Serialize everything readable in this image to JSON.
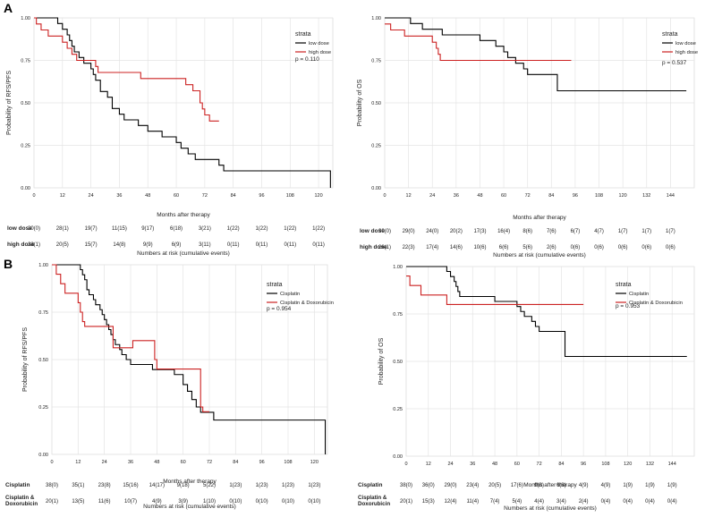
{
  "figure_labels": {
    "a": "A",
    "b": "B"
  },
  "chart_data": [
    {
      "id": "A-left",
      "type": "line",
      "step": true,
      "ylabel": "Probability of RFS/PFS",
      "xlabel": "Months after therapy",
      "risk_title": "Numbers at risk (cumulative events)",
      "xticks": [
        0,
        12,
        24,
        36,
        48,
        60,
        72,
        84,
        96,
        108,
        120
      ],
      "xlim": [
        0,
        126
      ],
      "yticks": [
        "0.00",
        "0.25",
        "0.50",
        "0.75",
        "1.00"
      ],
      "ylim": [
        0,
        1
      ],
      "legend_title": "strata",
      "pvalue": "p = 0.110",
      "series": [
        {
          "name": "low dose",
          "color": "#000000",
          "points": [
            [
              0,
              1
            ],
            [
              10,
              1
            ],
            [
              10,
              0.967
            ],
            [
              12,
              0.967
            ],
            [
              12,
              0.933
            ],
            [
              14,
              0.9
            ],
            [
              15,
              0.867
            ],
            [
              16,
              0.833
            ],
            [
              17,
              0.8
            ],
            [
              19,
              0.767
            ],
            [
              21,
              0.733
            ],
            [
              24,
              0.7
            ],
            [
              25,
              0.667
            ],
            [
              26,
              0.633
            ],
            [
              28,
              0.567
            ],
            [
              31,
              0.533
            ],
            [
              33,
              0.467
            ],
            [
              36,
              0.433
            ],
            [
              38,
              0.4
            ],
            [
              44,
              0.367
            ],
            [
              48,
              0.333
            ],
            [
              54,
              0.3
            ],
            [
              60,
              0.267
            ],
            [
              62,
              0.233
            ],
            [
              65,
              0.2
            ],
            [
              68,
              0.167
            ],
            [
              78,
              0.133
            ],
            [
              80,
              0.1
            ],
            [
              125,
              0.1
            ],
            [
              125,
              0
            ]
          ]
        },
        {
          "name": "high dose",
          "color": "#cc2222",
          "points": [
            [
              0,
              1
            ],
            [
              1,
              0.964
            ],
            [
              3,
              0.929
            ],
            [
              6,
              0.893
            ],
            [
              12,
              0.857
            ],
            [
              14,
              0.821
            ],
            [
              16,
              0.786
            ],
            [
              18,
              0.75
            ],
            [
              21,
              0.75
            ],
            [
              26,
              0.714
            ],
            [
              27,
              0.679
            ],
            [
              44,
              0.679
            ],
            [
              45,
              0.643
            ],
            [
              55,
              0.643
            ],
            [
              64,
              0.607
            ],
            [
              67,
              0.571
            ],
            [
              70,
              0.5
            ],
            [
              71,
              0.464
            ],
            [
              72,
              0.429
            ],
            [
              74,
              0.393
            ],
            [
              78,
              0.393
            ]
          ]
        }
      ],
      "risk_rows": [
        {
          "label": "low dose",
          "values": [
            "30(0)",
            "28(1)",
            "19(7)",
            "11(15)",
            "9(17)",
            "6(18)",
            "3(21)",
            "1(22)",
            "1(22)",
            "1(22)",
            "1(22)"
          ]
        },
        {
          "label": "high dose",
          "values": [
            "28(1)",
            "20(5)",
            "15(7)",
            "14(8)",
            "9(9)",
            "6(9)",
            "3(11)",
            "0(11)",
            "0(11)",
            "0(11)",
            "0(11)"
          ]
        }
      ]
    },
    {
      "id": "A-right",
      "type": "line",
      "step": true,
      "ylabel": "Probability of OS",
      "xlabel": "Months after therapy",
      "risk_title": "Numbers at risk (cumulative events)",
      "xticks": [
        0,
        12,
        24,
        36,
        48,
        60,
        72,
        84,
        96,
        108,
        120,
        132,
        144
      ],
      "xlim": [
        0,
        156
      ],
      "yticks": [
        "0.00",
        "0.25",
        "0.50",
        "0.75",
        "1.00"
      ],
      "ylim": [
        0,
        1
      ],
      "legend_title": "strata",
      "pvalue": "p = 0.537",
      "series": [
        {
          "name": "low dose",
          "color": "#000000",
          "points": [
            [
              0,
              1
            ],
            [
              12,
              1
            ],
            [
              13,
              0.967
            ],
            [
              18,
              0.967
            ],
            [
              19,
              0.933
            ],
            [
              28,
              0.933
            ],
            [
              29,
              0.9
            ],
            [
              46,
              0.9
            ],
            [
              48,
              0.867
            ],
            [
              54,
              0.867
            ],
            [
              56,
              0.833
            ],
            [
              60,
              0.8
            ],
            [
              62,
              0.767
            ],
            [
              66,
              0.733
            ],
            [
              70,
              0.7
            ],
            [
              72,
              0.667
            ],
            [
              86,
              0.667
            ],
            [
              87,
              0.571
            ],
            [
              152,
              0.571
            ]
          ]
        },
        {
          "name": "high dose",
          "color": "#cc2222",
          "points": [
            [
              0,
              0.964
            ],
            [
              3,
              0.929
            ],
            [
              10,
              0.893
            ],
            [
              24,
              0.857
            ],
            [
              26,
              0.821
            ],
            [
              27,
              0.786
            ],
            [
              28,
              0.75
            ],
            [
              94,
              0.75
            ]
          ]
        }
      ],
      "risk_rows": [
        {
          "label": "low dose",
          "values": [
            "30(0)",
            "29(0)",
            "24(0)",
            "20(2)",
            "17(3)",
            "16(4)",
            "8(6)",
            "7(6)",
            "6(7)",
            "4(7)",
            "1(7)",
            "1(7)",
            "1(7)"
          ]
        },
        {
          "label": "high dose",
          "values": [
            "28(1)",
            "22(3)",
            "17(4)",
            "14(6)",
            "10(6)",
            "6(6)",
            "5(6)",
            "2(6)",
            "0(6)",
            "0(6)",
            "0(6)",
            "0(6)",
            "0(6)"
          ]
        }
      ]
    },
    {
      "id": "B-left",
      "type": "line",
      "step": true,
      "ylabel": "Probability of RFS/PFS",
      "xlabel": "Months after therapy",
      "risk_title": "Numbers at risk (cumulative events)",
      "xticks": [
        0,
        12,
        24,
        36,
        48,
        60,
        72,
        84,
        96,
        108,
        120
      ],
      "xlim": [
        0,
        126
      ],
      "yticks": [
        "0.00",
        "0.25",
        "0.50",
        "0.75",
        "1.00"
      ],
      "ylim": [
        0,
        1
      ],
      "legend_title": "strata",
      "pvalue": "p = 0.954",
      "series": [
        {
          "name": "Cisplatin",
          "color": "#000000",
          "points": [
            [
              0,
              1
            ],
            [
              12,
              1
            ],
            [
              13,
              0.974
            ],
            [
              14,
              0.947
            ],
            [
              15,
              0.921
            ],
            [
              16,
              0.868
            ],
            [
              17,
              0.842
            ],
            [
              19,
              0.816
            ],
            [
              20,
              0.789
            ],
            [
              22,
              0.763
            ],
            [
              23,
              0.737
            ],
            [
              24,
              0.711
            ],
            [
              25,
              0.684
            ],
            [
              26,
              0.658
            ],
            [
              27,
              0.632
            ],
            [
              28,
              0.605
            ],
            [
              29,
              0.579
            ],
            [
              31,
              0.553
            ],
            [
              32,
              0.526
            ],
            [
              34,
              0.5
            ],
            [
              36,
              0.474
            ],
            [
              46,
              0.447
            ],
            [
              56,
              0.421
            ],
            [
              60,
              0.368
            ],
            [
              62,
              0.333
            ],
            [
              64,
              0.289
            ],
            [
              66,
              0.25
            ],
            [
              68,
              0.222
            ],
            [
              74,
              0.181
            ],
            [
              125,
              0.181
            ],
            [
              125,
              0
            ]
          ]
        },
        {
          "name": "Cisplatin & Doxorubicin",
          "color": "#cc2222",
          "points": [
            [
              0,
              1
            ],
            [
              2,
              0.95
            ],
            [
              4,
              0.9
            ],
            [
              6,
              0.85
            ],
            [
              11,
              0.85
            ],
            [
              12,
              0.8
            ],
            [
              13,
              0.75
            ],
            [
              14,
              0.7
            ],
            [
              15,
              0.675
            ],
            [
              26,
              0.675
            ],
            [
              28,
              0.562
            ],
            [
              36,
              0.562
            ],
            [
              37,
              0.6
            ],
            [
              46,
              0.6
            ],
            [
              47,
              0.5
            ],
            [
              48,
              0.45
            ],
            [
              67,
              0.45
            ],
            [
              68,
              0.25
            ],
            [
              69,
              0.225
            ],
            [
              72,
              0.225
            ]
          ]
        }
      ],
      "risk_rows": [
        {
          "label": "Cisplatin",
          "values": [
            "38(0)",
            "35(1)",
            "23(8)",
            "15(16)",
            "14(17)",
            "9(18)",
            "5(22)",
            "1(23)",
            "1(23)",
            "1(23)",
            "1(23)"
          ]
        },
        {
          "label": "Cisplatin &\nDoxorubicin",
          "values": [
            "20(1)",
            "13(5)",
            "11(6)",
            "10(7)",
            "4(9)",
            "3(9)",
            "1(10)",
            "0(10)",
            "0(10)",
            "0(10)",
            "0(10)"
          ]
        }
      ]
    },
    {
      "id": "B-right",
      "type": "line",
      "step": true,
      "ylabel": "Probability of OS",
      "xlabel": "Months after therapy",
      "risk_title": "Numbers at risk (cumulative events)",
      "xticks": [
        0,
        12,
        24,
        36,
        48,
        60,
        72,
        84,
        96,
        108,
        120,
        132,
        144
      ],
      "xlim": [
        0,
        156
      ],
      "yticks": [
        "0.00",
        "0.25",
        "0.50",
        "0.75",
        "1.00"
      ],
      "ylim": [
        0,
        1
      ],
      "legend_title": "strata",
      "pvalue": "p = 0.953",
      "series": [
        {
          "name": "Cisplatin",
          "color": "#000000",
          "points": [
            [
              0,
              1
            ],
            [
              20,
              1
            ],
            [
              22,
              0.974
            ],
            [
              24,
              0.947
            ],
            [
              26,
              0.921
            ],
            [
              27,
              0.895
            ],
            [
              28,
              0.868
            ],
            [
              29,
              0.842
            ],
            [
              46,
              0.842
            ],
            [
              48,
              0.816
            ],
            [
              58,
              0.816
            ],
            [
              60,
              0.789
            ],
            [
              62,
              0.763
            ],
            [
              64,
              0.737
            ],
            [
              68,
              0.711
            ],
            [
              70,
              0.684
            ],
            [
              72,
              0.658
            ],
            [
              84,
              0.658
            ],
            [
              86,
              0.526
            ],
            [
              152,
              0.526
            ]
          ]
        },
        {
          "name": "Cisplatin & Doxorubicin",
          "color": "#cc2222",
          "points": [
            [
              0,
              0.95
            ],
            [
              2,
              0.9
            ],
            [
              6,
              0.9
            ],
            [
              8,
              0.85
            ],
            [
              12,
              0.85
            ],
            [
              22,
              0.8
            ],
            [
              24,
              0.8
            ],
            [
              96,
              0.8
            ]
          ]
        }
      ],
      "risk_rows": [
        {
          "label": "Cisplatin",
          "values": [
            "38(0)",
            "36(0)",
            "29(0)",
            "23(4)",
            "20(5)",
            "17(6)",
            "9(8)",
            "6(8)",
            "4(9)",
            "4(9)",
            "1(9)",
            "1(9)",
            "1(9)"
          ]
        },
        {
          "label": "Cisplatin &\nDoxorubicin",
          "values": [
            "20(1)",
            "15(3)",
            "12(4)",
            "11(4)",
            "7(4)",
            "5(4)",
            "4(4)",
            "3(4)",
            "2(4)",
            "0(4)",
            "0(4)",
            "0(4)",
            "0(4)"
          ]
        }
      ]
    }
  ]
}
